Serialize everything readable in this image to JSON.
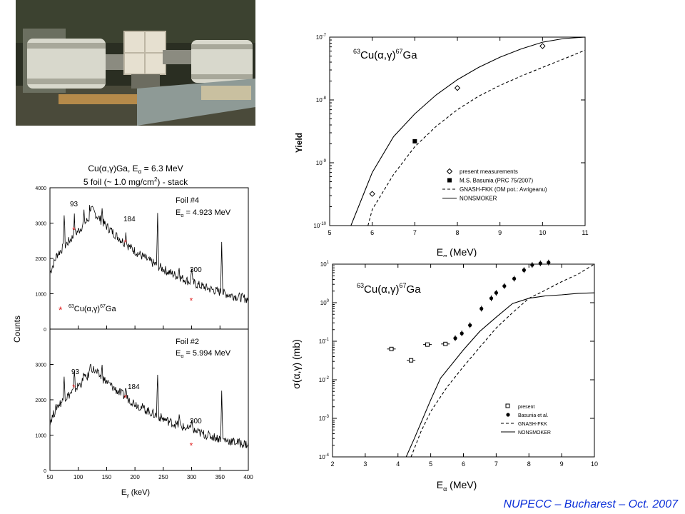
{
  "footer": "NUPECC – Bucharest – Oct. 2007",
  "photo": {
    "icon": "beamline-setup-photo"
  },
  "spectra": {
    "title_line1": "Cu(α,γ)Ga,  E",
    "title_sub": "α",
    "title_line1b": " = 6.3 MeV",
    "title_line2": "5 foil (~ 1.0 mg/cm",
    "title_line2_sup": "2",
    "title_line2b": ") - stack",
    "ylabel": "Counts",
    "xlabel": "E",
    "xlabel_sub": "γ",
    "xlabel_unit": " (keV)",
    "x_ticks": [
      "50",
      "100",
      "150",
      "200",
      "250",
      "300",
      "350",
      "400"
    ],
    "y_ticks_top": [
      "0",
      "1000",
      "2000",
      "3000",
      "4000"
    ],
    "y_ticks_bottom": [
      "0",
      "1000",
      "2000",
      "3000"
    ],
    "top_panel": {
      "label1": "Foil #4",
      "label2_pre": "E",
      "label2_sub": "α",
      "label2_post": " = 4.923 MeV"
    },
    "bottom_panel": {
      "label1": "Foil #2",
      "label2_pre": "E",
      "label2_sub": "α",
      "label2_post": " = 5.994 MeV"
    },
    "peak_labels": [
      "93",
      "184",
      "300"
    ],
    "legend_star": "*",
    "legend_mass1": "63",
    "legend_text1": "Cu(α,γ)",
    "legend_mass2": "67",
    "legend_text2": "Ga",
    "star_color": "#e02020"
  },
  "chart_data": [
    {
      "type": "line",
      "name": "yield",
      "reaction_mass1": "63",
      "reaction_mid": "Cu(α,γ)",
      "reaction_mass2": "67",
      "reaction_end": "Ga",
      "xlabel": "E",
      "xlabel_sub": "α",
      "xlabel_unit": " (MeV)",
      "ylabel": "Yield",
      "xlim": [
        5,
        11
      ],
      "ylim_log10": [
        -10,
        -7
      ],
      "y_scale": "log",
      "x_ticks": [
        "5",
        "6",
        "7",
        "8",
        "9",
        "10",
        "11"
      ],
      "y_tick_exponents": [
        "-10",
        "-9",
        "-8",
        "-7"
      ],
      "legend_position": "bottom-right",
      "series": [
        {
          "name": "present measurements",
          "style": "open-diamond",
          "x": [
            6.0,
            8.0,
            10.0
          ],
          "y": [
            3.2e-10,
            1.55e-08,
            7.2e-08
          ]
        },
        {
          "name": "M.S. Basunia (PRC 75/2007)",
          "style": "filled-square",
          "x": [
            7.0
          ],
          "y": [
            2.2e-09
          ]
        },
        {
          "name": "GNASH-FKK (OM pot.: Avrigeanu)",
          "style": "dashed",
          "x": [
            5.9,
            6.0,
            6.5,
            7.0,
            7.5,
            8.0,
            8.5,
            9.0,
            9.5,
            10.0,
            10.5,
            11.0
          ],
          "y": [
            1e-10,
            1.8e-10,
            6.5e-10,
            1.8e-09,
            3.8e-09,
            7e-09,
            1.15e-08,
            1.7e-08,
            2.4e-08,
            3.3e-08,
            4.5e-08,
            6.2e-08
          ]
        },
        {
          "name": "NONSMOKER",
          "style": "solid",
          "x": [
            5.5,
            5.8,
            6.0,
            6.5,
            7.0,
            7.5,
            8.0,
            8.5,
            9.0,
            9.5,
            10.0,
            10.5,
            11.0
          ],
          "y": [
            1e-10,
            3.2e-10,
            7e-10,
            2.6e-09,
            6e-09,
            1.2e-08,
            2.1e-08,
            3.3e-08,
            4.8e-08,
            6.5e-08,
            8.3e-08,
            9.5e-08,
            1e-07
          ]
        }
      ]
    },
    {
      "type": "line",
      "name": "cross-section",
      "reaction_mass1": "63",
      "reaction_mid": "Cu(α,γ)",
      "reaction_mass2": "67",
      "reaction_end": "Ga",
      "xlabel": "E",
      "xlabel_sub": "α",
      "xlabel_unit": " (MeV)",
      "ylabel": "σ(α,γ) (mb)",
      "xlim": [
        2,
        10
      ],
      "ylim_log10": [
        -4,
        1
      ],
      "y_scale": "log",
      "x_ticks": [
        "2",
        "3",
        "4",
        "5",
        "6",
        "7",
        "8",
        "9",
        "10"
      ],
      "y_tick_exponents": [
        "-4",
        "-3",
        "-2",
        "-1",
        "0",
        "1"
      ],
      "legend_position": "bottom-right",
      "series": [
        {
          "name": "present",
          "style": "open-square",
          "x": [
            3.8,
            4.4,
            4.9,
            5.45
          ],
          "y": [
            0.063,
            0.032,
            0.082,
            0.085
          ]
        },
        {
          "name": "Basunia et al.",
          "style": "filled-circle",
          "x": [
            5.75,
            5.95,
            6.2,
            6.55,
            6.85,
            7.0,
            7.25,
            7.55,
            7.85,
            8.1,
            8.35,
            8.6
          ],
          "y": [
            0.12,
            0.16,
            0.26,
            0.7,
            1.3,
            1.8,
            2.7,
            4.2,
            7.0,
            9.5,
            10.5,
            11.0
          ]
        },
        {
          "name": "GNASH-FKK",
          "style": "dashed",
          "x": [
            4.4,
            4.7,
            5.0,
            5.5,
            6.0,
            6.5,
            7.0,
            7.5,
            8.0,
            8.5,
            9.0,
            9.5,
            10.0
          ],
          "y": [
            0.0001,
            0.00045,
            0.0015,
            0.0065,
            0.022,
            0.07,
            0.22,
            0.55,
            1.3,
            2.1,
            3.5,
            5.5,
            10.0
          ]
        },
        {
          "name": "NONSMOKER",
          "style": "solid",
          "x": [
            4.25,
            4.5,
            5.0,
            5.3,
            6.0,
            6.5,
            7.0,
            7.5,
            8.0,
            8.5,
            9.0,
            9.5,
            10.0
          ],
          "y": [
            0.0001,
            0.0003,
            0.003,
            0.011,
            0.06,
            0.18,
            0.42,
            0.95,
            1.3,
            1.5,
            1.6,
            1.75,
            1.8
          ]
        }
      ]
    }
  ]
}
